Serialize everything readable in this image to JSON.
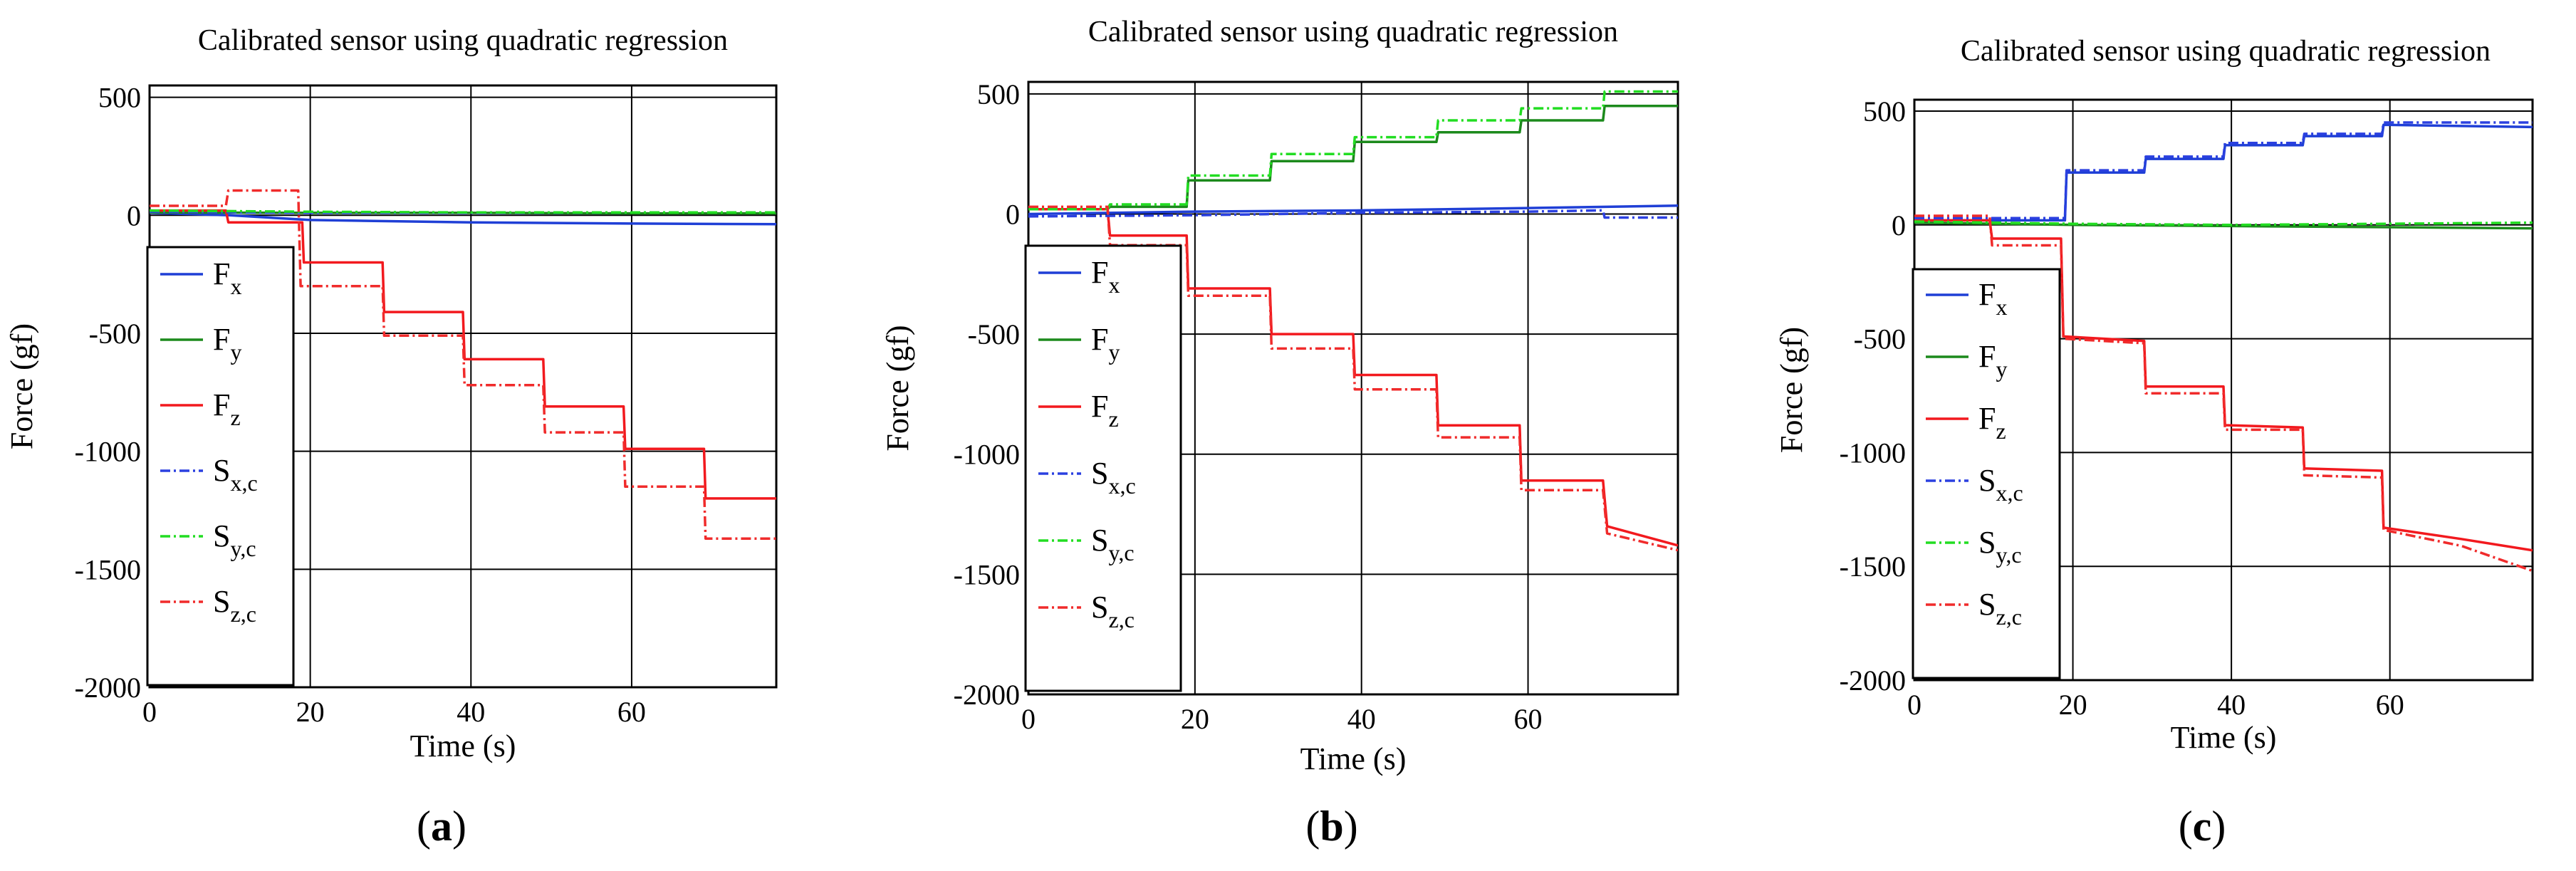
{
  "figure": {
    "panel_labels": [
      "(a)",
      "(b)",
      "(c)"
    ]
  },
  "legend_entries": [
    {
      "base": "F",
      "sub": "x",
      "color": "#1f3fd6",
      "style": "solid"
    },
    {
      "base": "F",
      "sub": "y",
      "color": "#1c8a1c",
      "style": "solid"
    },
    {
      "base": "F",
      "sub": "z",
      "color": "#f2191e",
      "style": "solid"
    },
    {
      "base": "S",
      "sub": "x,c",
      "color": "#2b40e0",
      "style": "dashdot"
    },
    {
      "base": "S",
      "sub": "y,c",
      "color": "#22dd22",
      "style": "dashdot"
    },
    {
      "base": "S",
      "sub": "z,c",
      "color": "#f02b2b",
      "style": "dashdot"
    }
  ],
  "chart_data": [
    {
      "type": "line",
      "panel": "(a)",
      "title": "Calibrated sensor using quadratic regression",
      "xlabel": "Time (s)",
      "ylabel": "Force (gf)",
      "xlim": [
        0,
        78
      ],
      "ylim": [
        -2000,
        550
      ],
      "xticks": [
        0,
        20,
        40,
        60
      ],
      "yticks": [
        500,
        0,
        -500,
        -1000,
        -1500,
        -2000
      ],
      "xtick_labels": [
        "0",
        "20",
        "40",
        "60"
      ],
      "ytick_labels": [
        "500",
        "0",
        "-500",
        "-1000",
        "-1500",
        "-2000"
      ],
      "grid": true,
      "legend_position": "lower-left",
      "series": [
        {
          "name": "Fx",
          "points": [
            [
              0,
              10
            ],
            [
              10,
              0
            ],
            [
              20,
              -20
            ],
            [
              40,
              -30
            ],
            [
              60,
              -35
            ],
            [
              78,
              -38
            ]
          ]
        },
        {
          "name": "Fy",
          "points": [
            [
              0,
              12
            ],
            [
              20,
              10
            ],
            [
              40,
              10
            ],
            [
              60,
              8
            ],
            [
              78,
              8
            ]
          ]
        },
        {
          "name": "Fz",
          "points": [
            [
              0,
              20
            ],
            [
              9.5,
              20
            ],
            [
              9.8,
              -30
            ],
            [
              19,
              -30
            ],
            [
              19.2,
              -200
            ],
            [
              29,
              -200
            ],
            [
              29.2,
              -410
            ],
            [
              39,
              -410
            ],
            [
              39.2,
              -610
            ],
            [
              49,
              -610
            ],
            [
              49.2,
              -810
            ],
            [
              59,
              -810
            ],
            [
              59.2,
              -990
            ],
            [
              69,
              -990
            ],
            [
              69.2,
              -1200
            ],
            [
              78,
              -1200
            ]
          ]
        },
        {
          "name": "Sx,c",
          "points": [
            [
              0,
              15
            ],
            [
              20,
              10
            ],
            [
              40,
              10
            ],
            [
              60,
              12
            ],
            [
              78,
              12
            ]
          ]
        },
        {
          "name": "Sy,c",
          "points": [
            [
              0,
              20
            ],
            [
              20,
              15
            ],
            [
              40,
              12
            ],
            [
              60,
              12
            ],
            [
              78,
              12
            ]
          ]
        },
        {
          "name": "Sz,c",
          "points": [
            [
              0,
              40
            ],
            [
              9.5,
              40
            ],
            [
              9.8,
              105
            ],
            [
              18.5,
              105
            ],
            [
              18.8,
              -300
            ],
            [
              29,
              -300
            ],
            [
              29.2,
              -510
            ],
            [
              39,
              -510
            ],
            [
              39.2,
              -720
            ],
            [
              49,
              -720
            ],
            [
              49.2,
              -920
            ],
            [
              59,
              -920
            ],
            [
              59.2,
              -1150
            ],
            [
              69,
              -1150
            ],
            [
              69.2,
              -1370
            ],
            [
              78,
              -1370
            ]
          ]
        }
      ]
    },
    {
      "type": "line",
      "panel": "(b)",
      "title": "Calibrated sensor using quadratic regression",
      "xlabel": "Time (s)",
      "ylabel": "Force (gf)",
      "xlim": [
        0,
        78
      ],
      "ylim": [
        -2000,
        550
      ],
      "xticks": [
        0,
        20,
        40,
        60
      ],
      "yticks": [
        500,
        0,
        -500,
        -1000,
        -1500,
        -2000
      ],
      "xtick_labels": [
        "0",
        "20",
        "40",
        "60"
      ],
      "ytick_labels": [
        "500",
        "0",
        "-500",
        "-1000",
        "-1500",
        "-2000"
      ],
      "grid": true,
      "legend_position": "lower-left",
      "series": [
        {
          "name": "Fx",
          "points": [
            [
              0,
              0
            ],
            [
              20,
              10
            ],
            [
              40,
              15
            ],
            [
              60,
              25
            ],
            [
              78,
              35
            ]
          ]
        },
        {
          "name": "Fy",
          "points": [
            [
              0,
              20
            ],
            [
              9.5,
              20
            ],
            [
              9.8,
              30
            ],
            [
              19,
              30
            ],
            [
              19.2,
              140
            ],
            [
              29,
              140
            ],
            [
              29.2,
              220
            ],
            [
              39,
              220
            ],
            [
              39.2,
              300
            ],
            [
              49,
              300
            ],
            [
              49.2,
              340
            ],
            [
              59,
              340
            ],
            [
              59.2,
              390
            ],
            [
              69,
              390
            ],
            [
              69.2,
              450
            ],
            [
              78,
              450
            ]
          ]
        },
        {
          "name": "Fz",
          "points": [
            [
              0,
              20
            ],
            [
              9.5,
              20
            ],
            [
              9.8,
              -90
            ],
            [
              19,
              -90
            ],
            [
              19.2,
              -310
            ],
            [
              29,
              -310
            ],
            [
              29.2,
              -500
            ],
            [
              39,
              -500
            ],
            [
              39.2,
              -670
            ],
            [
              49,
              -670
            ],
            [
              49.2,
              -880
            ],
            [
              59,
              -880
            ],
            [
              59.2,
              -1110
            ],
            [
              69,
              -1110
            ],
            [
              69.5,
              -1300
            ],
            [
              78,
              -1380
            ]
          ]
        },
        {
          "name": "Sx,c",
          "points": [
            [
              0,
              -10
            ],
            [
              20,
              -5
            ],
            [
              40,
              5
            ],
            [
              60,
              10
            ],
            [
              69,
              15
            ],
            [
              69.2,
              -15
            ],
            [
              78,
              -15
            ]
          ]
        },
        {
          "name": "Sy,c",
          "points": [
            [
              0,
              20
            ],
            [
              9.5,
              20
            ],
            [
              9.8,
              40
            ],
            [
              19,
              40
            ],
            [
              19.2,
              160
            ],
            [
              29,
              160
            ],
            [
              29.2,
              250
            ],
            [
              39,
              250
            ],
            [
              39.2,
              320
            ],
            [
              49,
              320
            ],
            [
              49.2,
              390
            ],
            [
              59,
              390
            ],
            [
              59.2,
              440
            ],
            [
              69,
              440
            ],
            [
              69.2,
              510
            ],
            [
              78,
              510
            ]
          ]
        },
        {
          "name": "Sz,c",
          "points": [
            [
              0,
              30
            ],
            [
              9.5,
              30
            ],
            [
              9.8,
              -130
            ],
            [
              19,
              -130
            ],
            [
              19.2,
              -340
            ],
            [
              29,
              -340
            ],
            [
              29.2,
              -560
            ],
            [
              39,
              -560
            ],
            [
              39.2,
              -730
            ],
            [
              49,
              -730
            ],
            [
              49.2,
              -930
            ],
            [
              59,
              -930
            ],
            [
              59.2,
              -1150
            ],
            [
              69,
              -1150
            ],
            [
              69.5,
              -1330
            ],
            [
              78,
              -1400
            ]
          ]
        }
      ]
    },
    {
      "type": "line",
      "panel": "(c)",
      "title": "Calibrated sensor using quadratic regression",
      "xlabel": "Time (s)",
      "ylabel": "Force (gf)",
      "xlim": [
        0,
        78
      ],
      "ylim": [
        -2000,
        550
      ],
      "xticks": [
        0,
        20,
        40,
        60
      ],
      "yticks": [
        500,
        0,
        -500,
        -1000,
        -1500,
        -2000
      ],
      "xtick_labels": [
        "0",
        "20",
        "40",
        "60"
      ],
      "ytick_labels": [
        "500",
        "0",
        "-500",
        "-1000",
        "-1500",
        "-2000"
      ],
      "grid": true,
      "legend_position": "lower-left",
      "series": [
        {
          "name": "Fx",
          "points": [
            [
              0,
              20
            ],
            [
              19,
              20
            ],
            [
              19.2,
              230
            ],
            [
              29,
              230
            ],
            [
              29.2,
              290
            ],
            [
              39,
              290
            ],
            [
              39.2,
              350
            ],
            [
              49,
              350
            ],
            [
              49.2,
              390
            ],
            [
              59,
              390
            ],
            [
              59.2,
              440
            ],
            [
              78,
              430
            ]
          ]
        },
        {
          "name": "Fy",
          "points": [
            [
              0,
              10
            ],
            [
              20,
              0
            ],
            [
              40,
              -5
            ],
            [
              60,
              -10
            ],
            [
              78,
              -15
            ]
          ]
        },
        {
          "name": "Fz",
          "points": [
            [
              0,
              20
            ],
            [
              9.5,
              20
            ],
            [
              9.8,
              -60
            ],
            [
              18.5,
              -60
            ],
            [
              18.8,
              -490
            ],
            [
              29,
              -510
            ],
            [
              29.2,
              -710
            ],
            [
              39,
              -710
            ],
            [
              39.2,
              -880
            ],
            [
              49,
              -890
            ],
            [
              49.2,
              -1070
            ],
            [
              59,
              -1080
            ],
            [
              59.2,
              -1330
            ],
            [
              69,
              -1380
            ],
            [
              78,
              -1430
            ]
          ]
        },
        {
          "name": "Sx,c",
          "points": [
            [
              0,
              30
            ],
            [
              19,
              30
            ],
            [
              19.2,
              240
            ],
            [
              29,
              240
            ],
            [
              29.2,
              300
            ],
            [
              39,
              300
            ],
            [
              39.2,
              360
            ],
            [
              49,
              360
            ],
            [
              49.2,
              400
            ],
            [
              59,
              400
            ],
            [
              59.2,
              450
            ],
            [
              78,
              450
            ]
          ]
        },
        {
          "name": "Sy,c",
          "points": [
            [
              0,
              15
            ],
            [
              20,
              5
            ],
            [
              40,
              0
            ],
            [
              60,
              5
            ],
            [
              78,
              10
            ]
          ]
        },
        {
          "name": "Sz,c",
          "points": [
            [
              0,
              40
            ],
            [
              9.5,
              40
            ],
            [
              9.8,
              -90
            ],
            [
              18.5,
              -90
            ],
            [
              18.8,
              -500
            ],
            [
              29,
              -520
            ],
            [
              29.2,
              -740
            ],
            [
              39,
              -740
            ],
            [
              39.2,
              -900
            ],
            [
              49,
              -900
            ],
            [
              49.2,
              -1100
            ],
            [
              59,
              -1110
            ],
            [
              59.2,
              -1340
            ],
            [
              69,
              -1410
            ],
            [
              78,
              -1520
            ]
          ]
        }
      ]
    }
  ]
}
